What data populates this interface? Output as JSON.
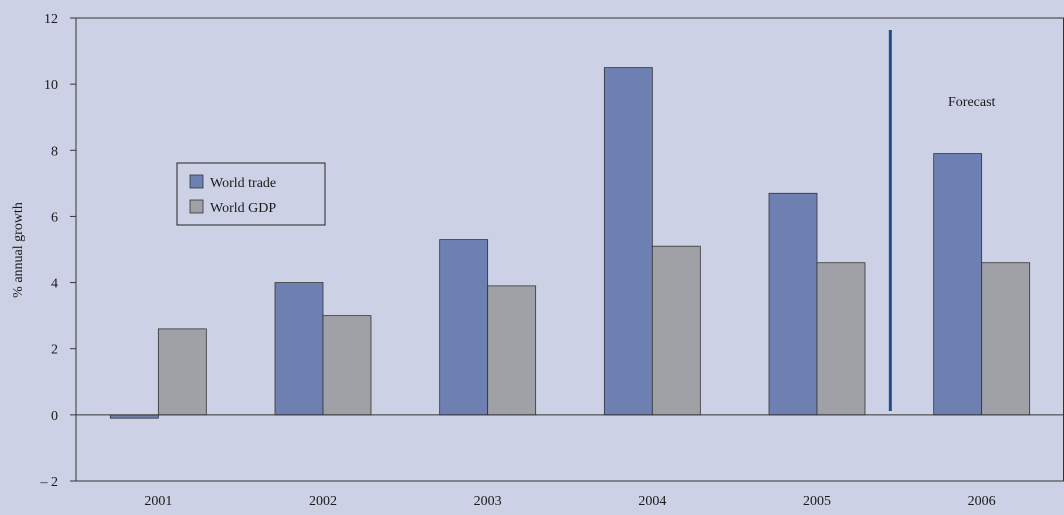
{
  "chart_data": {
    "type": "bar",
    "title": "",
    "xlabel": "",
    "ylabel": "% annual growth",
    "categories": [
      "2001",
      "2002",
      "2003",
      "2004",
      "2005",
      "2006"
    ],
    "series": [
      {
        "name": "World trade",
        "color": "#6e7fb2",
        "values": [
          -0.1,
          4.0,
          5.3,
          10.5,
          6.7,
          7.9
        ]
      },
      {
        "name": "World GDP",
        "color": "#a0a1a7",
        "values": [
          2.6,
          3.0,
          3.9,
          5.1,
          4.6,
          4.6
        ]
      }
    ],
    "ylim": [
      -2,
      12
    ],
    "yticks": [
      -2,
      0,
      2,
      4,
      6,
      8,
      10,
      12
    ],
    "ytick_labels": [
      "– 2",
      "0",
      "2",
      "4",
      "6",
      "8",
      "10",
      "12"
    ],
    "grid": false,
    "legend_position": "left",
    "annotations": [
      {
        "text": "Forecast",
        "divider_between": [
          "2005",
          "2006"
        ]
      }
    ],
    "divider_color": "#1f4e8c"
  }
}
